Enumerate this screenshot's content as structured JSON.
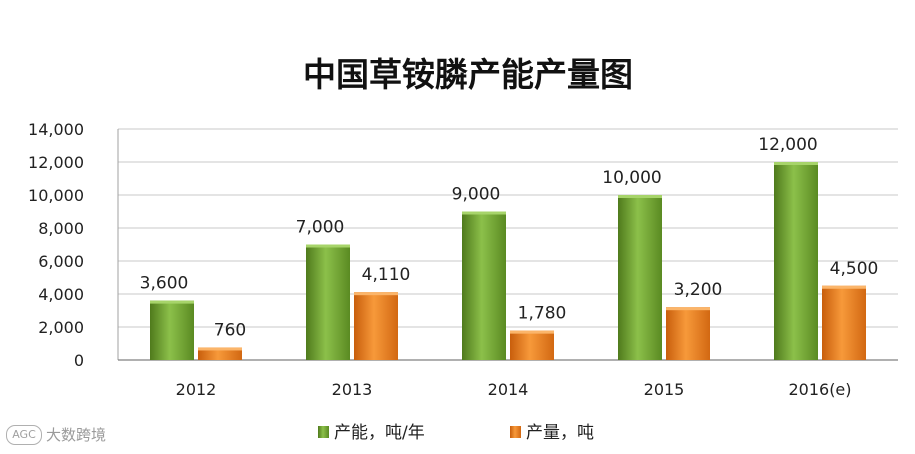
{
  "chart_data": {
    "type": "bar",
    "title": "中国草铵膦产能产量图",
    "categories": [
      "2012",
      "2013",
      "2014",
      "2015",
      "2016(e)"
    ],
    "series": [
      {
        "name": "产能，吨/年",
        "values": [
          3600,
          7000,
          9000,
          10000,
          12000
        ],
        "labels": [
          "3,600",
          "7,000",
          "9,000",
          "10,000",
          "12,000"
        ],
        "color": "#6b9a2a"
      },
      {
        "name": "产量，吨",
        "values": [
          760,
          4110,
          1780,
          3200,
          4500
        ],
        "labels": [
          "760",
          "4,110",
          "1,780",
          "3,200",
          "4,500"
        ],
        "color": "#e8781e"
      }
    ],
    "ylim": [
      0,
      14000
    ],
    "yticks": [
      0,
      2000,
      4000,
      6000,
      8000,
      10000,
      12000,
      14000
    ],
    "ytick_labels": [
      "0",
      "2,000",
      "4,000",
      "6,000",
      "8,000",
      "10,000",
      "12,000",
      "14,000"
    ],
    "grid": true,
    "legend": "bottom"
  },
  "watermark": {
    "logo_text": "AGC",
    "text": "大数跨境"
  }
}
